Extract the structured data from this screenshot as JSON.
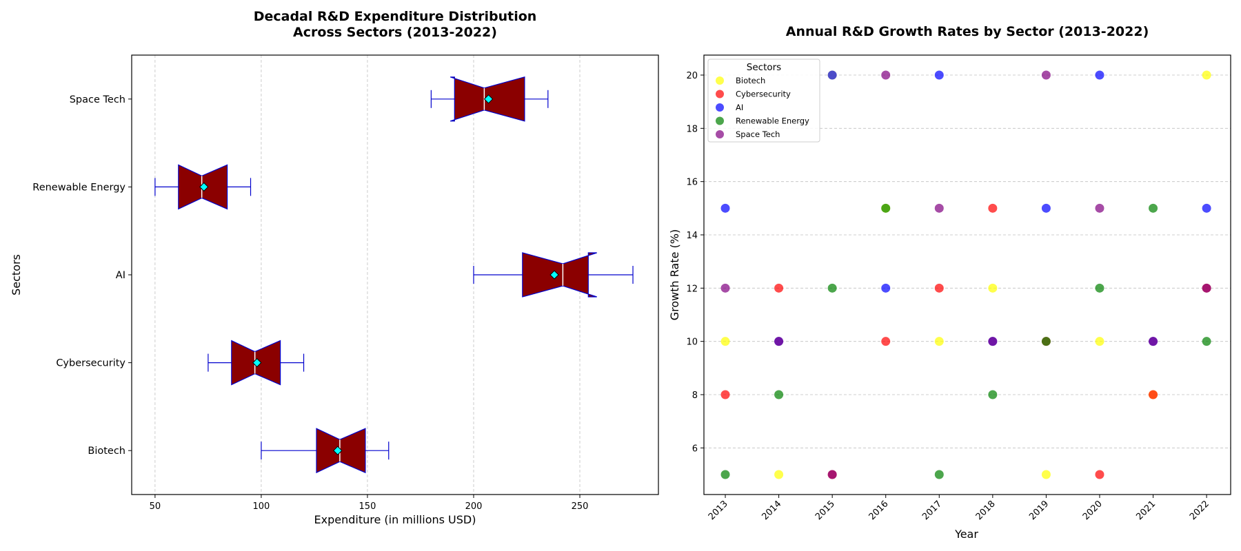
{
  "chart_data": [
    {
      "type": "boxplot",
      "orientation": "horizontal",
      "notched": true,
      "title_lines": [
        "Decadal R&D Expenditure Distribution",
        "Across Sectors (2013-2022)"
      ],
      "xlabel": "Expenditure (in millions USD)",
      "ylabel": "Sectors",
      "xlim": [
        39,
        287
      ],
      "xticks": [
        50,
        100,
        150,
        200,
        250
      ],
      "categories": [
        "Biotech",
        "Cybersecurity",
        "AI",
        "Renewable Energy",
        "Space Tech"
      ],
      "boxes": [
        {
          "name": "Biotech",
          "whislo": 100,
          "q1": 126,
          "med": 137,
          "q3": 149,
          "whishi": 160,
          "mean": 136,
          "notch": [
            126,
            149
          ]
        },
        {
          "name": "Cybersecurity",
          "whislo": 75,
          "q1": 86,
          "med": 97,
          "q3": 109,
          "whishi": 120,
          "mean": 98,
          "notch": [
            86,
            109
          ]
        },
        {
          "name": "AI",
          "whislo": 200,
          "q1": 223,
          "med": 242,
          "q3": 254,
          "whishi": 275,
          "mean": 238,
          "notch": [
            223,
            258
          ]
        },
        {
          "name": "Renewable Energy",
          "whislo": 50,
          "q1": 61,
          "med": 72,
          "q3": 84,
          "whishi": 95,
          "mean": 73,
          "notch": [
            61,
            84
          ]
        },
        {
          "name": "Space Tech",
          "whislo": 180,
          "q1": 191,
          "med": 205,
          "q3": 224,
          "whishi": 235,
          "mean": 207,
          "notch": [
            189,
            224
          ]
        }
      ],
      "box_color": "#8b0000",
      "edge_color": "#0000cd",
      "median_color": "#ffffff",
      "mean_marker_color": "#00ffff",
      "grid": "x dashed"
    },
    {
      "type": "scatter",
      "title": "Annual R&D Growth Rates by Sector (2013-2022)",
      "xlabel": "Year",
      "ylabel": "Growth Rate (%)",
      "xlim": [
        2012.6,
        2022.45
      ],
      "ylim": [
        4.25,
        20.75
      ],
      "x": [
        2013,
        2014,
        2015,
        2016,
        2017,
        2018,
        2019,
        2020,
        2021,
        2022
      ],
      "xtick_labels": [
        "2013",
        "2014",
        "2015",
        "2016",
        "2017",
        "2018",
        "2019",
        "2020",
        "2021",
        "2022"
      ],
      "yticks": [
        "6",
        "8",
        "10",
        "12",
        "14",
        "16",
        "18",
        "20"
      ],
      "legend": {
        "title": "Sectors",
        "position": "upper-left"
      },
      "grid": "y dashed",
      "series": [
        {
          "name": "Biotech",
          "color": "#ffff00",
          "values": [
            10,
            5,
            20,
            15,
            10,
            12,
            5,
            10,
            8,
            20
          ]
        },
        {
          "name": "Cybersecurity",
          "color": "#ff0000",
          "values": [
            8,
            12,
            5,
            10,
            12,
            15,
            10,
            5,
            8,
            12
          ]
        },
        {
          "name": "AI",
          "color": "#0000ff",
          "values": [
            15,
            10,
            20,
            12,
            20,
            10,
            15,
            20,
            10,
            15
          ]
        },
        {
          "name": "Renewable Energy",
          "color": "#008000",
          "values": [
            5,
            8,
            12,
            15,
            5,
            8,
            10,
            12,
            15,
            10
          ]
        },
        {
          "name": "Space Tech",
          "color": "#800080",
          "values": [
            12,
            10,
            5,
            20,
            15,
            10,
            20,
            15,
            10,
            12
          ]
        }
      ]
    }
  ]
}
